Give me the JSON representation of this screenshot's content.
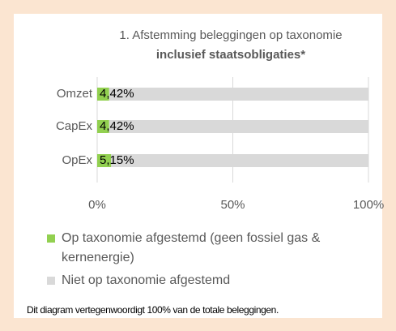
{
  "chart_data": {
    "type": "stacked-bar-horizontal",
    "title": "1. Afstemming beleggingen op taxonomie",
    "subtitle": "inclusief staatsobligaties*",
    "categories": [
      "Omzet",
      "CapEx",
      "OpEx"
    ],
    "series": [
      {
        "name": "Op taxonomie afgestemd (geen fossiel gas & kernenergie)",
        "color": "#92d050",
        "values": [
          4.42,
          4.42,
          5.15
        ],
        "value_labels": [
          "4,42%",
          "4,42%",
          "5,15%"
        ]
      },
      {
        "name": "Niet op taxonomie afgestemd",
        "color": "#d9d9d9",
        "values": [
          95.58,
          95.58,
          94.85
        ]
      }
    ],
    "xlim": [
      0,
      100
    ],
    "xticks": [
      {
        "value": 0,
        "label": "0%"
      },
      {
        "value": 50,
        "label": "50%"
      },
      {
        "value": 100,
        "label": "100%"
      }
    ],
    "grid": true,
    "footnote": "Dit diagram vertegenwoordigt 100% van de totale beleggingen."
  }
}
